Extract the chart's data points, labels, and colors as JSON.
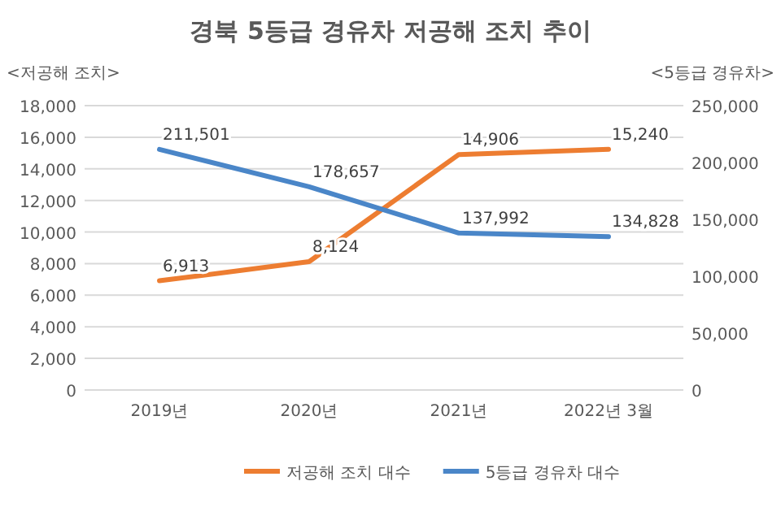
{
  "chart_data": {
    "type": "line",
    "title": "경북  5등급 경유차 저공해 조치 추이",
    "ylabel": "<저공해 조치>",
    "y2label": "<5등급 경유차>",
    "categories": [
      "2019년",
      "2020년",
      "2021년",
      "2022년 3월"
    ],
    "series": [
      {
        "name": "저공해 조치 대수",
        "color": "#ed7d31",
        "values": [
          6913,
          8124,
          14906,
          15240
        ],
        "value_labels": [
          "6,913",
          "8,124",
          "14,906",
          "15,240"
        ]
      },
      {
        "name": "5등급 경유차 대수",
        "color": "#4a86c8",
        "axis": "y2",
        "values": [
          211501,
          178657,
          137992,
          134828
        ],
        "value_labels": [
          "211,501",
          "178,657",
          "137,992",
          "134,828"
        ]
      }
    ],
    "ylim": [
      0,
      18000
    ],
    "yticks": [
      {
        "value": 0,
        "label": "0"
      },
      {
        "value": 2000,
        "label": "2,000"
      },
      {
        "value": 4000,
        "label": "4,000"
      },
      {
        "value": 6000,
        "label": "6,000"
      },
      {
        "value": 8000,
        "label": "8,000"
      },
      {
        "value": 10000,
        "label": "10,000"
      },
      {
        "value": 12000,
        "label": "12,000"
      },
      {
        "value": 14000,
        "label": "14,000"
      },
      {
        "value": 16000,
        "label": "16,000"
      },
      {
        "value": 18000,
        "label": "18,000"
      }
    ],
    "y2lim": [
      0,
      250000
    ],
    "y2ticks": [
      {
        "value": 0,
        "label": "0"
      },
      {
        "value": 50000,
        "label": "50,000"
      },
      {
        "value": 100000,
        "label": "100,000"
      },
      {
        "value": 150000,
        "label": "150,000"
      },
      {
        "value": 200000,
        "label": "200,000"
      },
      {
        "value": 250000,
        "label": "250,000"
      }
    ],
    "grid": "y",
    "legend": "bottom",
    "marker": "none",
    "line_style": "solid"
  }
}
